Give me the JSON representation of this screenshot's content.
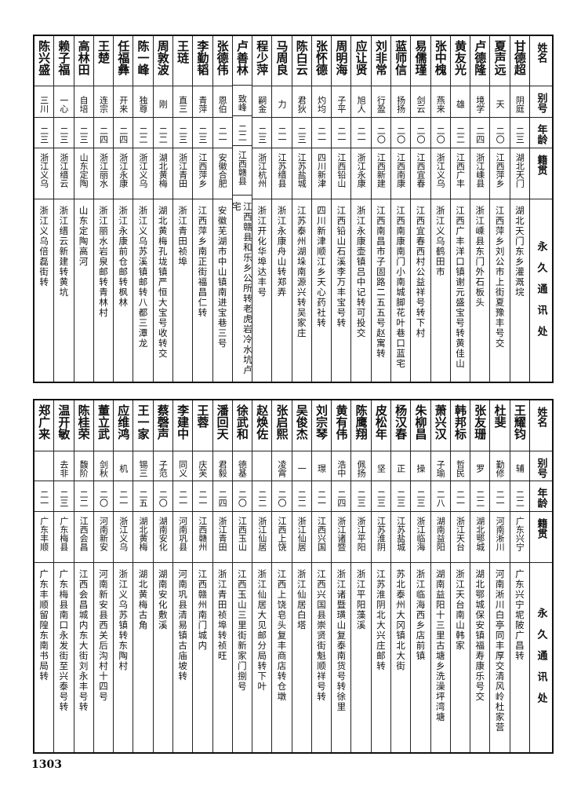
{
  "headers": [
    "姓名",
    "别号",
    "年龄",
    "籍贯",
    "永久通讯处"
  ],
  "top_table": [
    [
      "甘德超",
      "阴庭",
      "二三",
      "湖北天门",
      "湖北天门东乡灌溉垸"
    ],
    [
      "夏声远",
      "天",
      "二〇",
      "江西萍乡",
      "江西萍乡刘公市上街夏豫丰号交"
    ],
    [
      "卢德隆",
      "境学",
      "二四",
      "浙江嵊县",
      "浙江嵊县东门外石板头"
    ],
    [
      "黄友光",
      "雄",
      "二二",
      "江西广丰",
      "江西广丰洋口镇谢元盛宝号转黄佳山"
    ],
    [
      "张中槐",
      "燕来",
      "二〇",
      "浙江义乌",
      "浙江义乌鹤田市"
    ],
    [
      "易儒瑾",
      "剑云",
      "二〇",
      "江西宜春",
      "江西宜春西村公益祥号转下村"
    ],
    [
      "蓝师信",
      "扬扬",
      "二〇",
      "江西南康",
      "江西南康南门小南城脚花叶巷口蓝宅"
    ],
    [
      "刘非常",
      "行盈",
      "二〇",
      "江西新建",
      "江西南昌市子固路二五五号赵寓转"
    ],
    [
      "应让贤",
      "旭人",
      "二一",
      "浙江永康",
      "浙江永康壶镇吕中记转可投交"
    ],
    [
      "周明海",
      "子平",
      "二一",
      "江西铅山",
      "江西铅山石溪李万丰宝号转"
    ],
    [
      "张怀德",
      "灼均",
      "二一",
      "四川新津",
      "四川新津顺江乡天心药社转"
    ],
    [
      "陈白云",
      "君狄",
      "二三",
      "江苏盐城",
      "江苏泰州湖垛南源兴转吴家庄"
    ],
    [
      "马周良",
      "力",
      "二一",
      "江苏缙县",
      "浙江永康舟山转郑弄"
    ],
    [
      "程少萍",
      "嗣金",
      "二三",
      "浙江杭州",
      "浙江开化华埠达丰号"
    ],
    [
      "卢善林",
      "致峰",
      "二二",
      "江西赣县",
      "江西赣县和乐乡公所转老虎岩冷水坑卢宅"
    ],
    [
      "张德伟",
      "恩伯",
      "二一",
      "安徽合肥",
      "安徽芜湖市中山镇南进宝巷三号"
    ],
    [
      "李勤韬",
      "青萍",
      "二三",
      "江西萍乡",
      "江西萍乡南正街福昌仁转"
    ],
    [
      "王琏",
      "直三",
      "二三",
      "浙江青田",
      "浙江青田祯埠"
    ],
    [
      "周敦波",
      "刚",
      "二二",
      "湖北黄梅",
      "湖北黄梅孔垅镇严恒大宝号收转交"
    ],
    [
      "陈一峰",
      "独尊",
      "二二",
      "浙江义乌",
      "浙江义乌苏溪镇邮转八都三潭龙"
    ],
    [
      "任福彝",
      "开来",
      "二四",
      "浙江永康",
      "浙江永康前仓邮转枫林"
    ],
    [
      "王楚",
      "连宗",
      "二四",
      "浙江丽水",
      "浙江丽水岩泉邮转青林村"
    ],
    [
      "高林田",
      "自培",
      "二三",
      "山东定陶",
      "山东定陶高河"
    ],
    [
      "赖子福",
      "一心",
      "二三",
      "浙江缙云",
      "浙江缙云新建转黄坑"
    ],
    [
      "陈兴盛",
      "三川",
      "二三",
      "浙江义乌",
      "浙江义乌倍磊街转"
    ]
  ],
  "bottom_table": [
    [
      "王耀钧",
      "辅",
      "二二",
      "广东兴宁",
      "广东兴宁坭陂广昌转"
    ],
    [
      "杜斐",
      "勤修",
      "二一",
      "河南淅川",
      "河南淅川白亭同丰厚交清风岭杜家营"
    ],
    [
      "张友珊",
      "罗",
      "二二",
      "湖北鄂城",
      "湖北鄂城保安镇福寿康乐号交"
    ],
    [
      "韩邦标",
      "哲民",
      "二一",
      "浙江天台",
      "浙江天台南山韩家"
    ],
    [
      "萧兴汉",
      "子瑜",
      "二八",
      "湖南益阳",
      "湖南益阳十三里古塘乡洗澡坪湾塘"
    ],
    [
      "朱柳昌",
      "操",
      "二三",
      "浙江临海",
      "浙江临海西乡店前镇"
    ],
    [
      "杨汉春",
      "正",
      "二三",
      "江苏盐城",
      "苏北泰州大冈镇北大街"
    ],
    [
      "皮松年",
      "坚",
      "二三",
      "江苏淮阴",
      "江苏淮阴北大兴庄邮转"
    ],
    [
      "陈鹰翔",
      "佩扬",
      "二三",
      "浙江平阳",
      "浙江平阳藻溪"
    ],
    [
      "黄有伟",
      "浩中",
      "二四",
      "浙江诸暨",
      "浙江诸暨璜山复泰南货号转徐里"
    ],
    [
      "刘宗琴",
      "璟",
      "二一",
      "江西兴国",
      "江西兴国县崇贤街魁顺祥号转"
    ],
    [
      "吴俊杰",
      "一",
      "二二",
      "浙江仙居",
      "浙江仙居白塔"
    ],
    [
      "张启熙",
      "凌霄",
      "二〇",
      "江西上饶",
      "江西上饶皂头复丰商店转仓墩"
    ],
    [
      "赵焕佐",
      "",
      "二二",
      "浙江仙居",
      "浙江仙居大见邮分局转下叶"
    ],
    [
      "徐武和",
      "德基",
      "二〇",
      "江西玉山",
      "江西玉山三里街新家门捌号"
    ],
    [
      "潘回天",
      "君毅",
      "二四",
      "浙江青田",
      "浙江青田祯埠转祯旺"
    ],
    [
      "王蓉",
      "庆芙",
      "二一",
      "江西赣州",
      "江西赣州南门城内"
    ],
    [
      "李建中",
      "同义",
      "二一",
      "河南巩县",
      "河南巩县清易镇古庙坡转"
    ],
    [
      "蔡磬声",
      "子范",
      "二〇",
      "湖南安化",
      "湖南安化敷溪"
    ],
    [
      "王一家",
      "锡三",
      "二五",
      "湖北黄梅",
      "湖北黄梅古角"
    ],
    [
      "应维鸿",
      "机",
      "二一",
      "浙江义乌",
      "浙江义乌苏镇转东陶村"
    ],
    [
      "董立武",
      "剑秋",
      "二〇",
      "河南新安",
      "河南新安县西关后沟村十四号"
    ],
    [
      "陈桂荣",
      "馥阶",
      "二二",
      "江西会昌",
      "江西会昌城内东大街刘永丰号转"
    ],
    [
      "温开敏",
      "去非",
      "二三",
      "广东梅县",
      "广东梅县南口永发街至兴泰号转"
    ],
    [
      "郑广来",
      "",
      "二一",
      "广东丰顺",
      "广东丰顺留隍东南书局转"
    ]
  ],
  "page_number": "1303"
}
